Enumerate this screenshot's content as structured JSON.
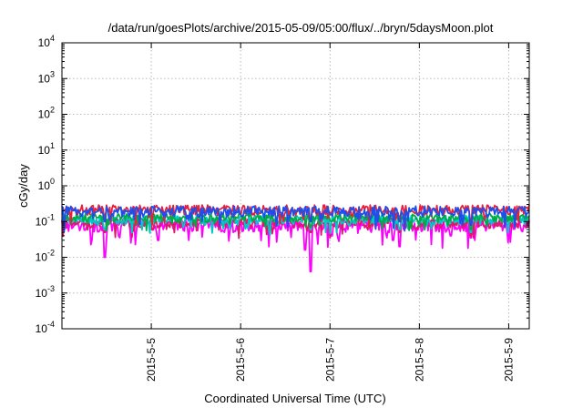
{
  "chart_data": {
    "type": "line",
    "title": "/data/run/goesPlots/archive/2015-05-09/05:00/flux/../bryn/5daysMoon.plot",
    "xlabel": "Coordinated Universal Time (UTC)",
    "ylabel": "cGy/day",
    "y_scale": "log",
    "ylim": [
      0.0001,
      10000
    ],
    "xlim": [
      0,
      5.23
    ],
    "y_ticks": [
      {
        "base": "10",
        "exp": "-4",
        "value": 0.0001
      },
      {
        "base": "10",
        "exp": "-3",
        "value": 0.001
      },
      {
        "base": "10",
        "exp": "-2",
        "value": 0.01
      },
      {
        "base": "10",
        "exp": "-1",
        "value": 0.1
      },
      {
        "base": "10",
        "exp": "0",
        "value": 1
      },
      {
        "base": "10",
        "exp": "1",
        "value": 10
      },
      {
        "base": "10",
        "exp": "2",
        "value": 100
      },
      {
        "base": "10",
        "exp": "3",
        "value": 1000
      },
      {
        "base": "10",
        "exp": "4",
        "value": 10000
      }
    ],
    "x_ticks": [
      {
        "label": "2015-5-5",
        "value": 1
      },
      {
        "label": "2015-5-6",
        "value": 2
      },
      {
        "label": "2015-5-7",
        "value": 3
      },
      {
        "label": "2015-5-8",
        "value": 4
      },
      {
        "label": "2015-5-9",
        "value": 5
      }
    ],
    "grid": true,
    "legend": "none",
    "series": [
      {
        "color": "#ff00ff",
        "base": 0.08,
        "amplitude": 0.03,
        "dips": [
          [
            0.48,
            0.01
          ],
          [
            1.08,
            0.03
          ],
          [
            1.42,
            0.03
          ],
          [
            2.72,
            0.016
          ],
          [
            2.78,
            0.004
          ],
          [
            3.02,
            0.04
          ],
          [
            3.7,
            0.03
          ],
          [
            3.78,
            0.02
          ],
          [
            4.35,
            0.04
          ],
          [
            4.58,
            0.035
          ],
          [
            4.62,
            0.03
          ]
        ]
      },
      {
        "color": "#e0186c",
        "base": 0.095,
        "amplitude": 0.03,
        "dips": [
          [
            0.48,
            0.05
          ],
          [
            2.78,
            0.05
          ],
          [
            3.78,
            0.05
          ],
          [
            4.58,
            0.04
          ]
        ]
      },
      {
        "color": "#00c8c8",
        "base": 0.115,
        "amplitude": 0.035,
        "dips": [
          [
            0.48,
            0.06
          ],
          [
            2.78,
            0.06
          ],
          [
            3.78,
            0.06
          ],
          [
            4.58,
            0.05
          ]
        ]
      },
      {
        "color": "#00aa44",
        "base": 0.13,
        "amplitude": 0.035,
        "dips": [
          [
            2.78,
            0.07
          ],
          [
            4.58,
            0.06
          ]
        ]
      },
      {
        "color": "#e8203c",
        "base": 0.22,
        "amplitude": 0.07,
        "dips": [
          [
            0.48,
            0.12
          ],
          [
            2.78,
            0.12
          ],
          [
            3.78,
            0.12
          ],
          [
            4.58,
            0.1
          ]
        ]
      },
      {
        "color": "#1f4fe8",
        "base": 0.2,
        "amplitude": 0.07,
        "dips": [
          [
            0.48,
            0.1
          ],
          [
            2.78,
            0.1
          ],
          [
            3.78,
            0.1
          ],
          [
            4.58,
            0.08
          ]
        ]
      }
    ]
  }
}
